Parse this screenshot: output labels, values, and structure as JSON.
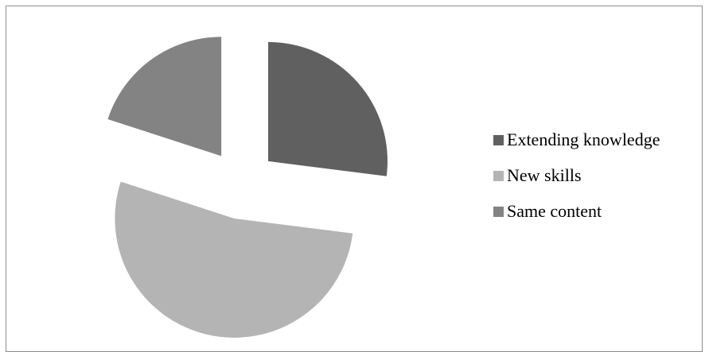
{
  "chart_data": {
    "type": "pie",
    "exploded": true,
    "categories": [
      "Extending knowledge",
      "New skills",
      "Same content"
    ],
    "values": [
      27,
      53,
      20
    ],
    "colors": [
      "#606060",
      "#b4b4b4",
      "#838383"
    ],
    "legend_position": "right"
  }
}
